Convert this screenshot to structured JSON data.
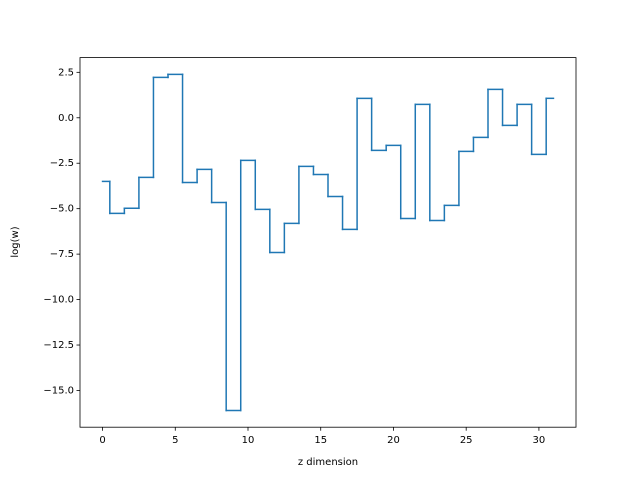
{
  "chart_data": {
    "type": "step",
    "step_where": "mid",
    "xlabel": "z dimension",
    "ylabel": "log(w)",
    "x": [
      0,
      1,
      2,
      3,
      4,
      5,
      6,
      7,
      8,
      9,
      10,
      11,
      12,
      13,
      14,
      15,
      16,
      17,
      18,
      19,
      20,
      21,
      22,
      23,
      24,
      25,
      26,
      27,
      28,
      29,
      30,
      31
    ],
    "series": [
      {
        "color": "#1f77b4",
        "values": [
          -3.5,
          -5.26,
          -4.98,
          -3.28,
          2.22,
          2.39,
          -3.56,
          -2.84,
          -4.66,
          -16.1,
          -2.34,
          -5.04,
          -7.41,
          -5.81,
          -2.67,
          -3.12,
          -4.33,
          -6.14,
          1.07,
          -1.79,
          -1.52,
          -5.54,
          0.74,
          -5.65,
          -4.82,
          -1.85,
          -1.08,
          1.56,
          -0.42,
          0.74,
          -2.01,
          1.07
        ]
      }
    ],
    "xlim": [
      -1.55,
      32.55
    ],
    "ylim": [
      -17.02,
      3.31
    ],
    "xticks": [
      0,
      5,
      10,
      15,
      20,
      25,
      30
    ],
    "yticks": [
      {
        "value": 2.5,
        "label": "2.5"
      },
      {
        "value": 0,
        "label": "0.0"
      },
      {
        "value": -2.5,
        "label": "−2.5"
      },
      {
        "value": -5,
        "label": "−5.0"
      },
      {
        "value": -7.5,
        "label": "−7.5"
      },
      {
        "value": -10,
        "label": "−10.0"
      },
      {
        "value": -12.5,
        "label": "−12.5"
      },
      {
        "value": -15,
        "label": "−15.0"
      }
    ],
    "grid": false
  }
}
